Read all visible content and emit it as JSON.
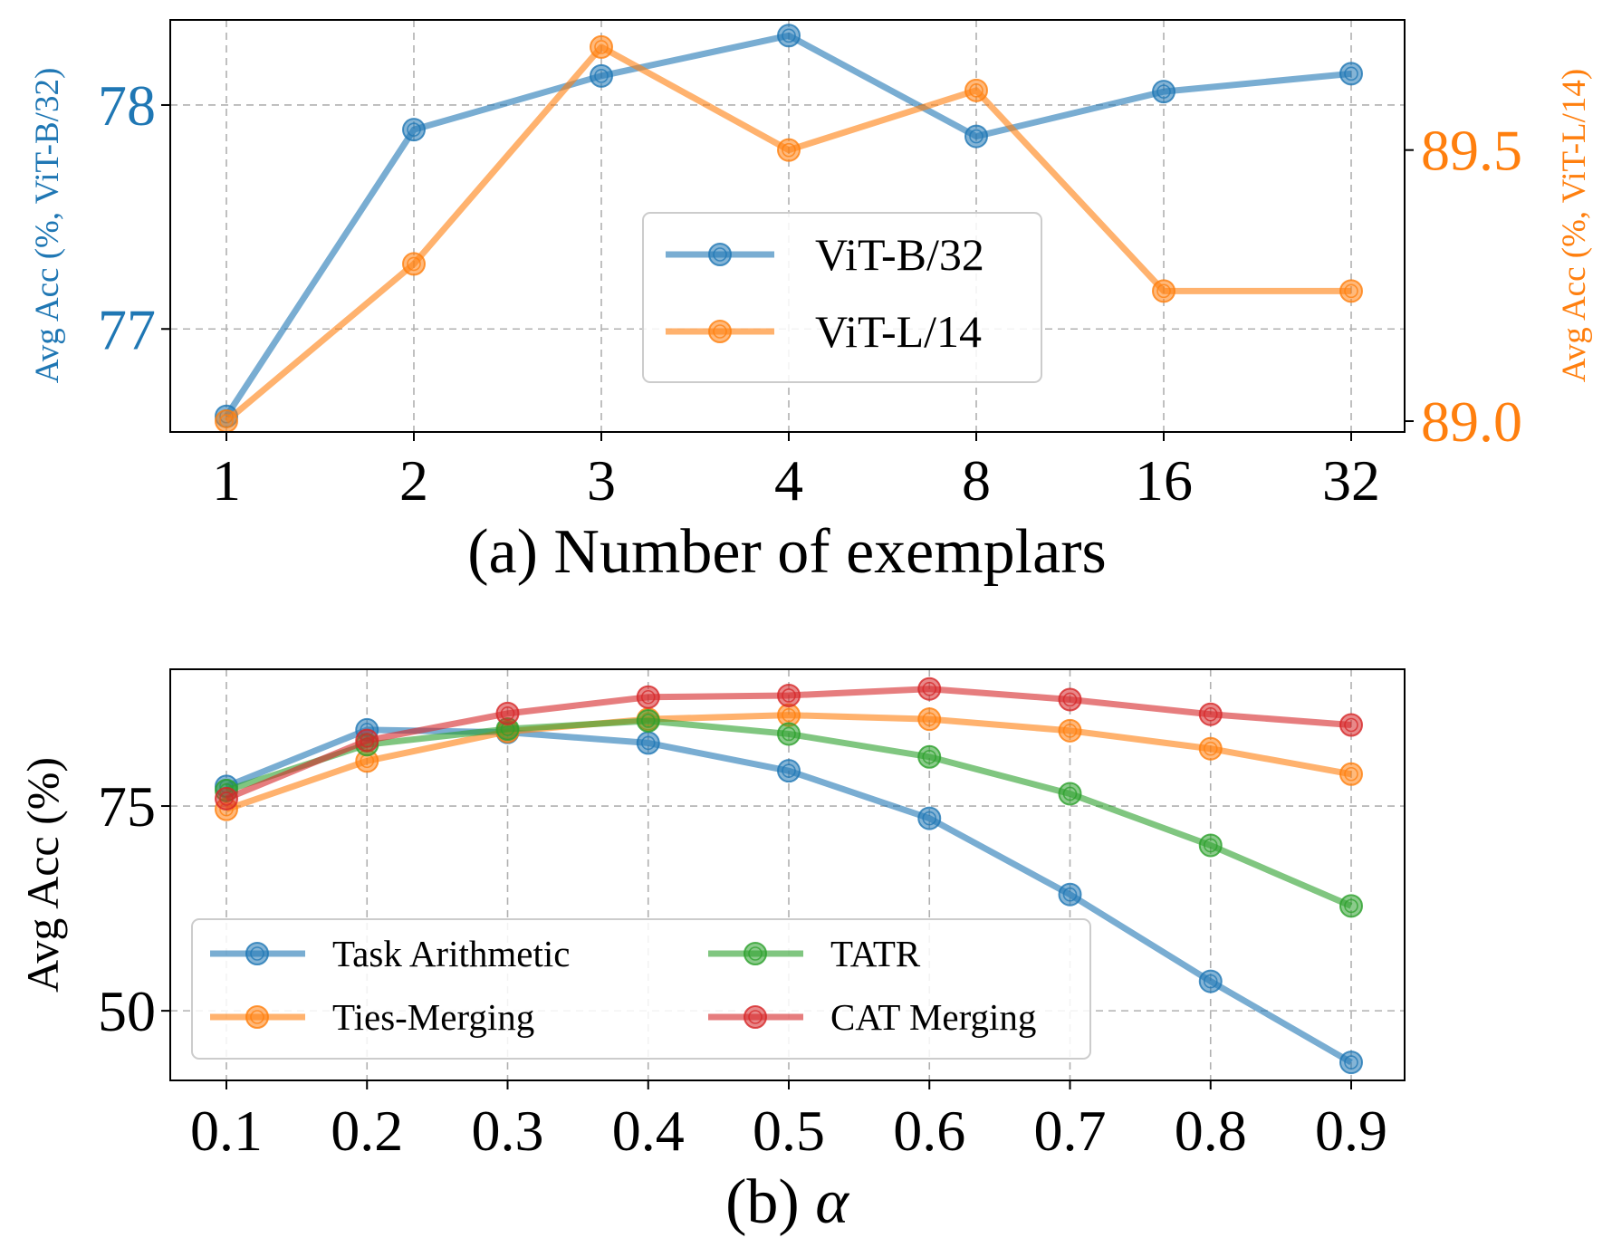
{
  "colors": {
    "blue": "#1f77b4",
    "orange": "#ff7f0e",
    "green": "#2ca02c",
    "red": "#d62728",
    "grid": "#b0b0b0",
    "frame": "#000000"
  },
  "chart_data": [
    {
      "type": "line",
      "xlabel": "(a) Number of exemplars",
      "categories": [
        "1",
        "2",
        "3",
        "4",
        "8",
        "16",
        "32"
      ],
      "ylabel_left": "Avg Acc (%, ViT-B/32)",
      "ylabel_right": "Avg Acc (%, ViT-L/14)",
      "ylim_left": [
        76.54,
        78.38
      ],
      "ylim_right": [
        88.98,
        89.74
      ],
      "yticks_left": [
        "77",
        "78"
      ],
      "yticks_right": [
        "89.0",
        "89.5"
      ],
      "grid": true,
      "legend_position": "center",
      "series": [
        {
          "name": "ViT-B/32",
          "axis": "left",
          "color": "blue",
          "values": [
            76.61,
            77.89,
            78.13,
            78.31,
            77.86,
            78.06,
            78.14
          ]
        },
        {
          "name": "ViT-L/14",
          "axis": "right",
          "color": "orange",
          "values": [
            89.0,
            89.29,
            89.69,
            89.5,
            89.61,
            89.24,
            89.24
          ]
        }
      ]
    },
    {
      "type": "line",
      "xlabel_prefix": "(b) ",
      "xlabel_symbol": "α",
      "categories": [
        "0.1",
        "0.2",
        "0.3",
        "0.4",
        "0.5",
        "0.6",
        "0.7",
        "0.8",
        "0.9"
      ],
      "ylabel": "Avg Acc (%)",
      "ylim": [
        41.5,
        91.7
      ],
      "yticks": [
        "50",
        "75"
      ],
      "grid": true,
      "legend_position": "lower-left",
      "series": [
        {
          "name": "Task Arithmetic",
          "color": "blue",
          "values": [
            77.4,
            84.3,
            84.0,
            82.7,
            79.3,
            73.5,
            64.2,
            53.6,
            43.7
          ]
        },
        {
          "name": "Ties-Merging",
          "color": "orange",
          "values": [
            74.6,
            80.5,
            84.1,
            85.6,
            86.1,
            85.6,
            84.2,
            82.0,
            78.9
          ]
        },
        {
          "name": "TATR",
          "color": "green",
          "values": [
            76.9,
            82.5,
            84.4,
            85.4,
            83.8,
            81.0,
            76.5,
            70.2,
            62.8
          ]
        },
        {
          "name": "CAT Merging",
          "color": "red",
          "values": [
            75.9,
            83.0,
            86.3,
            88.3,
            88.5,
            89.3,
            88.0,
            86.2,
            84.9
          ]
        }
      ]
    }
  ]
}
